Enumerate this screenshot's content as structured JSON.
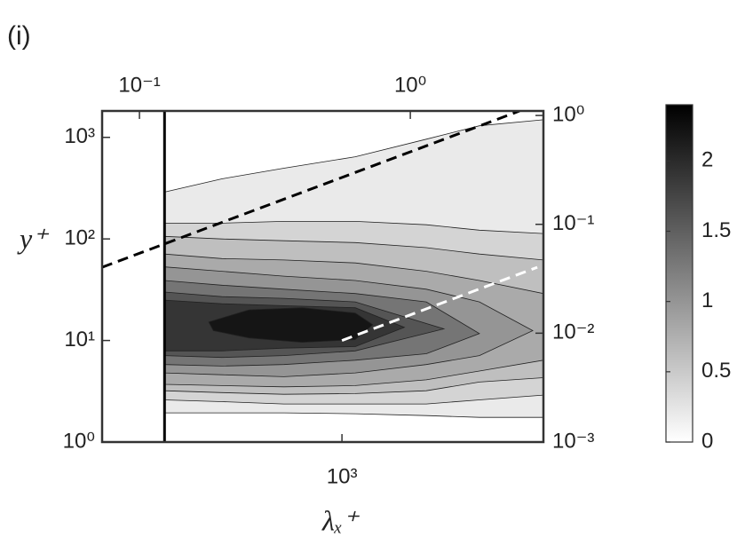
{
  "chart_data": {
    "type": "contour",
    "panel_label": "(i)",
    "x_label": "λₓ⁺",
    "y_label": "y⁺",
    "xscale": "log",
    "yscale": "log",
    "xlim": [
      130,
      5550
    ],
    "xticks": [
      {
        "value": 1000,
        "label": "10³"
      }
    ],
    "x2lim": [
      0.0728,
      3.1
    ],
    "x2ticks": [
      {
        "value": 0.1,
        "label": "10⁻¹"
      },
      {
        "value": 1,
        "label": "10⁰"
      }
    ],
    "ylim": [
      1,
      1820
    ],
    "yticks": [
      {
        "value": 1,
        "label": "10⁰"
      },
      {
        "value": 10,
        "label": "10¹"
      },
      {
        "value": 100,
        "label": "10²"
      },
      {
        "value": 1000,
        "label": "10³"
      }
    ],
    "y2lim": [
      0.001,
      1.1
    ],
    "y2ticks": [
      {
        "value": 0.001,
        "label": "10⁻³"
      },
      {
        "value": 0.01,
        "label": "10⁻²"
      },
      {
        "value": 0.1,
        "label": "10⁻¹"
      },
      {
        "value": 1,
        "label": "10⁰"
      }
    ],
    "colorbar": {
      "clim": [
        0,
        2.4
      ],
      "ticks": [
        0,
        0.5,
        1,
        1.5,
        2
      ]
    },
    "contours": [
      {
        "level": 0.2,
        "x": [
          221,
          360,
          610,
          1120,
          2050,
          3220,
          5550,
          5550,
          3220,
          2050,
          1120,
          610,
          360,
          221
        ],
        "y": [
          289,
          390,
          497,
          644,
          960,
          1300,
          1490,
          1.75,
          1.75,
          1.82,
          1.9,
          1.94,
          1.94,
          1.94
        ]
      },
      {
        "level": 0.4,
        "x": [
          221,
          360,
          610,
          1120,
          2050,
          3220,
          5550,
          5550,
          3220,
          2050,
          1120,
          610,
          360,
          221
        ],
        "y": [
          143,
          143,
          149,
          149,
          138,
          122,
          113,
          2.9,
          2.6,
          2.37,
          2.37,
          2.37,
          2.5,
          2.6
        ]
      },
      {
        "level": 0.6,
        "x": [
          221,
          360,
          610,
          1120,
          2050,
          3220,
          5550,
          5550,
          3220,
          2050,
          1120,
          610,
          360,
          221
        ],
        "y": [
          106,
          100,
          96,
          92,
          82,
          71,
          62,
          4.3,
          3.9,
          3.2,
          3.0,
          2.95,
          3.07,
          3.2
        ]
      },
      {
        "level": 0.8,
        "x": [
          221,
          360,
          610,
          1120,
          2050,
          3220,
          5550,
          5550,
          3220,
          2050,
          1120,
          610,
          360,
          221
        ],
        "y": [
          71,
          64,
          62,
          58,
          48,
          39,
          29,
          6.4,
          5.0,
          4.1,
          3.6,
          3.5,
          3.6,
          3.7
        ]
      },
      {
        "level": 1.0,
        "x": [
          221,
          360,
          610,
          1120,
          2050,
          3220,
          5070,
          3220,
          2050,
          1120,
          610,
          360,
          221
        ],
        "y": [
          53,
          48,
          43,
          39,
          32,
          24,
          12.5,
          7.1,
          5.8,
          4.8,
          4.4,
          4.6,
          4.8
        ]
      },
      {
        "level": 1.3,
        "x": [
          221,
          360,
          610,
          1120,
          2050,
          3220,
          2050,
          1120,
          610,
          360,
          221
        ],
        "y": [
          39,
          35,
          32,
          29,
          24,
          11.7,
          7.4,
          6.4,
          5.8,
          5.6,
          5.8
        ]
      },
      {
        "level": 1.6,
        "x": [
          221,
          360,
          610,
          1120,
          2380,
          1120,
          610,
          360,
          221
        ],
        "y": [
          30,
          27,
          26,
          24,
          13,
          7.9,
          7.1,
          6.8,
          7.1
        ]
      },
      {
        "level": 1.9,
        "x": [
          221,
          360,
          610,
          1120,
          1700,
          1120,
          610,
          360,
          221
        ],
        "y": [
          25,
          23,
          22,
          21,
          13.5,
          8.7,
          8.4,
          7.9,
          7.9
        ]
      },
      {
        "level": 2.2,
        "x": [
          322,
          453,
          713,
          1120,
          1300,
          1120,
          713,
          453,
          335
        ],
        "y": [
          15.2,
          20,
          21,
          18.6,
          14.3,
          10.2,
          9.6,
          10.6,
          12.5
        ]
      }
    ],
    "lines": [
      {
        "x": [
          221,
          221
        ],
        "y": [
          1,
          1820
        ],
        "color": "#000000",
        "dashed": false
      },
      {
        "x": [
          130,
          4530
        ],
        "y": [
          52.6,
          1820
        ],
        "color": "#000000",
        "dashed": true
      },
      {
        "x": [
          1000,
          5270
        ],
        "y": [
          10,
          52.6
        ],
        "color": "#ffffff",
        "dashed": true
      }
    ]
  }
}
